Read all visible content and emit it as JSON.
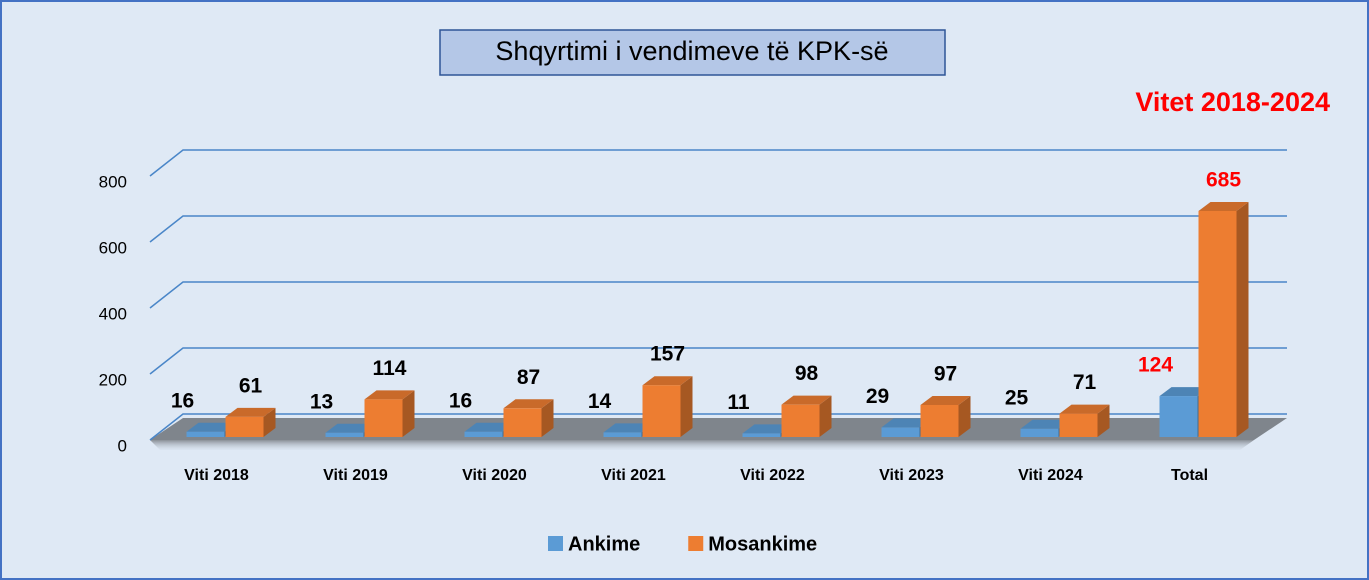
{
  "chart_data": {
    "type": "bar3d",
    "title": "Shqyrtimi i vendimeve të KPK-së",
    "subtitle": "Vitet 2018-2024",
    "categories": [
      "Viti 2018",
      "Viti 2019",
      "Viti 2020",
      "Viti 2021",
      "Viti 2022",
      "Viti 2023",
      "Viti 2024",
      "Total"
    ],
    "series": [
      {
        "name": "Ankime",
        "color": "#5b9bd5",
        "values": [
          16,
          13,
          16,
          14,
          11,
          29,
          25,
          124
        ]
      },
      {
        "name": "Mosankime",
        "color": "#ed7d31",
        "values": [
          61,
          114,
          87,
          157,
          98,
          97,
          71,
          685
        ]
      }
    ],
    "ylim": [
      0,
      800
    ],
    "yticks": [
      0,
      200,
      400,
      600,
      800
    ],
    "grid": true,
    "legend": "bottom"
  }
}
